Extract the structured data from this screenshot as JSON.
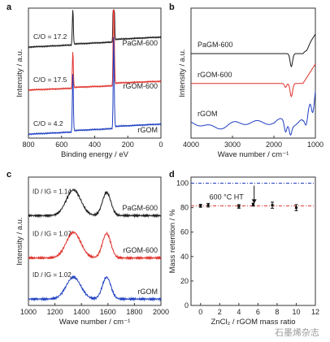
{
  "colors": {
    "black": "#1a1a1a",
    "red": "#e0302a",
    "blue": "#1f3fc2",
    "frame": "#333333"
  },
  "watermark": "石墨烯杂志",
  "chart_data": [
    {
      "panel": "a",
      "type": "line",
      "xlabel": "Binding energy / eV",
      "ylabel": "Intensity / a.u.",
      "xlim": [
        800,
        0
      ],
      "xticks": [
        800,
        600,
        400,
        200,
        0
      ],
      "series": [
        {
          "name": "PaGM-600",
          "color_key": "black",
          "annotation": "C/O = 17.2",
          "peaks": [
            {
              "x": 532,
              "h": 0.28
            },
            {
              "x": 285,
              "h": 0.85
            }
          ],
          "offset": 0.7,
          "base_slope": 0.05
        },
        {
          "name": "rGOM-600",
          "color_key": "red",
          "annotation": "C/O = 17.5",
          "peaks": [
            {
              "x": 532,
              "h": 0.28
            },
            {
              "x": 285,
              "h": 0.85
            }
          ],
          "offset": 0.37,
          "base_slope": 0.04
        },
        {
          "name": "rGOM",
          "color_key": "blue",
          "annotation": "C/O = 4.2",
          "peaks": [
            {
              "x": 532,
              "h": 0.45
            },
            {
              "x": 285,
              "h": 0.7
            }
          ],
          "offset": 0.03,
          "base_slope": 0.05
        }
      ]
    },
    {
      "panel": "b",
      "type": "line",
      "xlabel": "Wave number / cm⁻¹",
      "ylabel": "Intensity / a.u.",
      "xlim": [
        4000,
        1000
      ],
      "xticks": [
        4000,
        3000,
        2000,
        1000
      ],
      "series": [
        {
          "name": "PaGM-600",
          "color_key": "black",
          "offset": 0.65,
          "features": [
            {
              "x": 1580,
              "depth": 0.1,
              "w": 30
            },
            {
              "x": 1200,
              "depth": 0.02,
              "w": 40
            }
          ]
        },
        {
          "name": "rGOM-600",
          "color_key": "red",
          "offset": 0.42,
          "features": [
            {
              "x": 1580,
              "depth": 0.1,
              "w": 30
            },
            {
              "x": 1720,
              "depth": 0.03,
              "w": 25
            }
          ]
        },
        {
          "name": "rGOM",
          "color_key": "blue",
          "offset": 0.12,
          "features": [
            {
              "x": 3400,
              "depth": 0.04,
              "w": 250
            },
            {
              "x": 1720,
              "depth": 0.08,
              "w": 30
            },
            {
              "x": 1600,
              "depth": 0.07,
              "w": 30
            },
            {
              "x": 1220,
              "depth": 0.12,
              "w": 40
            },
            {
              "x": 1060,
              "depth": 0.14,
              "w": 35
            }
          ]
        }
      ]
    },
    {
      "panel": "c",
      "type": "line",
      "xlabel": "Wave number / cm⁻¹",
      "ylabel": "Intensity / a.u.",
      "xlim": [
        1000,
        2000
      ],
      "xticks": [
        1000,
        1200,
        1400,
        1600,
        1800,
        2000
      ],
      "series": [
        {
          "name": "PaGM-600",
          "color_key": "black",
          "annotation": "ID / IG = 1.14",
          "offset": 0.7,
          "D": {
            "x": 1340,
            "h": 0.2
          },
          "G": {
            "x": 1590,
            "h": 0.18
          }
        },
        {
          "name": "rGOM-600",
          "color_key": "red",
          "annotation": "ID / IG = 1.07",
          "offset": 0.37,
          "D": {
            "x": 1340,
            "h": 0.2
          },
          "G": {
            "x": 1590,
            "h": 0.19
          }
        },
        {
          "name": "rGOM",
          "color_key": "blue",
          "annotation": "ID / IG = 1.02",
          "offset": 0.05,
          "D": {
            "x": 1340,
            "h": 0.17
          },
          "G": {
            "x": 1590,
            "h": 0.17
          }
        }
      ]
    },
    {
      "panel": "d",
      "type": "scatter",
      "xlabel": "ZnCl₂ / rGOM mass ratio",
      "ylabel": "Mass retention / %",
      "xlim": [
        -1,
        12
      ],
      "ylim": [
        0,
        105
      ],
      "xticks": [
        0,
        2,
        4,
        6,
        8,
        10,
        12
      ],
      "yticks": [
        0,
        20,
        40,
        60,
        80,
        100
      ],
      "annotation": "600 °C HT",
      "reference_line": {
        "y": 100,
        "color_key": "blue"
      },
      "fit_line": {
        "y": 81.5,
        "color_key": "red"
      },
      "points": [
        {
          "x": 0,
          "y": 81.5,
          "err": 1.2
        },
        {
          "x": 0.8,
          "y": 82.0,
          "err": 1.5
        },
        {
          "x": 4,
          "y": 81.0,
          "err": 1.5
        },
        {
          "x": 5.5,
          "y": 82.5,
          "err": 1.2
        },
        {
          "x": 7.5,
          "y": 82.0,
          "err": 2.5
        },
        {
          "x": 10,
          "y": 80.0,
          "err": 2.5
        }
      ]
    }
  ]
}
